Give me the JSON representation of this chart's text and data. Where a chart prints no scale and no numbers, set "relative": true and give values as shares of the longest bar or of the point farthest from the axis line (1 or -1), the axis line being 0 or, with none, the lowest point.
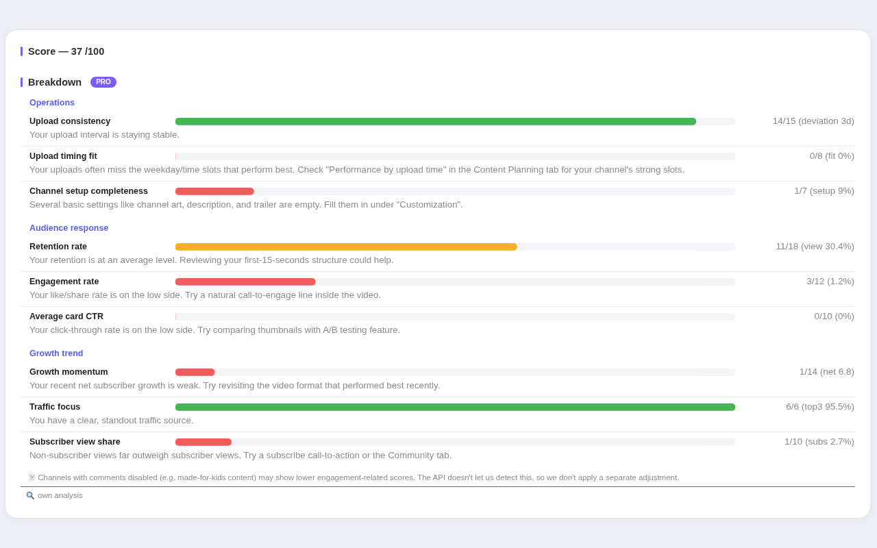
{
  "chart_data": {
    "type": "bar",
    "orientation": "horizontal",
    "relative": true,
    "stacked": true,
    "title": "Score — 37 /100",
    "subtitle": "Breakdown",
    "categories": [
      "Operations",
      "Upload consistency",
      "Upload timing fit",
      "Channel setup completeness",
      "Audience response",
      "Retention rate",
      "Engagement rate",
      "Average card CTR",
      "Growth trend",
      "Growth momentum",
      "Traffic focus",
      "Subscriber view share"
    ],
    "series": [
      {
        "values": [
          null,
          0.93,
          0,
          0.14,
          null,
          0.61,
          0.25,
          0,
          null,
          0.07,
          1,
          0.1
        ],
        "colors": [
          null,
          "#43b555",
          "#f25c5c",
          "#f25c5c",
          null,
          "#f7b01f",
          "#f25c5c",
          "#f25c5c",
          null,
          "#f25c5c",
          "#43b555",
          "#f25c5c"
        ]
      },
      {
        "values": [
          null,
          0.07,
          1,
          0.86,
          null,
          0.39,
          0.75,
          1,
          null,
          0.93,
          0,
          0.9
        ],
        "color": "#f3f4f7"
      }
    ],
    "annotations": [
      "PRO",
      "14/15 (deviation 3d)",
      "Your upload interval is staying stable.",
      "0/8 (fit 0%)",
      "Your uploads often miss the weekday/time slots that perform best. Check \"Performance by upload time\" in the Content Planning tab for your channel's strong slots.",
      "1/7 (setup 9%)",
      "Several basic settings like channel art, description, and trailer are empty. Fill them in under \"Customization\".",
      "11/18 (view 30.4%)",
      "Your retention is at an average level. Reviewing your first-15-seconds structure could help.",
      "3/12 (1.2%)",
      "Your like/share rate is on the low side. Try a natural call-to-engage line inside the video.",
      "0/10 (0%)",
      "Your click-through rate is on the low side. Try comparing thumbnails with A/B testing feature.",
      "1/14 (net 6.8)",
      "Your recent net subscriber growth is weak. Try revisiting the video format that performed best recently.",
      "6/6 (top3 95.5%)",
      "You have a clear, standout traffic source.",
      "1/10 (subs 2.7%)",
      "Non-subscriber views far outweigh subscriber views. Try a subscribe call-to-action or the Community tab.",
      "※ Channels with comments disabled (e.g. made-for-kids content) may show lower engagement-related scores. The API doesn't let us detect this, so we don't apply a separate adjustment.",
      "own analysis"
    ]
  }
}
